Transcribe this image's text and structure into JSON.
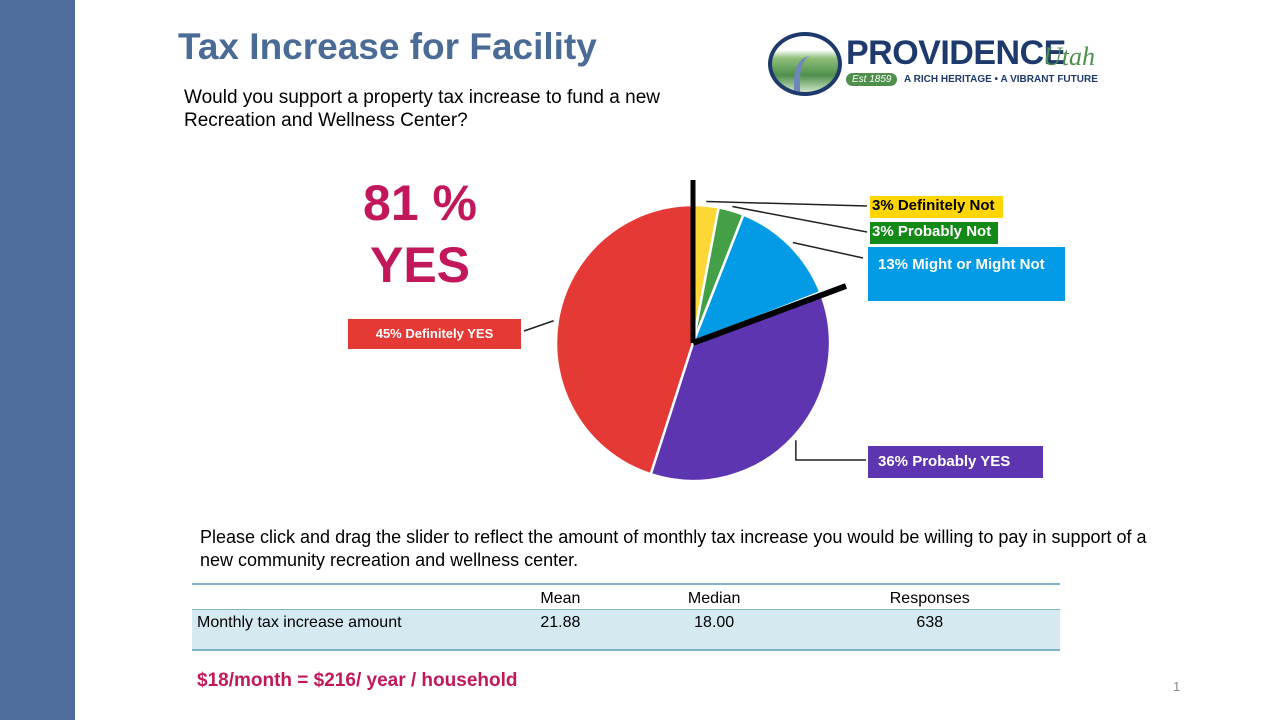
{
  "slide": {
    "title": "Tax Increase for Facility",
    "question": "Would you support a property tax increase to fund a new Recreation and Wellness Center?",
    "headline_pct": "81 %",
    "headline_word": "YES",
    "instruction": "Please click and drag the slider to reflect the amount of monthly tax increase you would be willing to pay in support of a new community recreation and wellness center.",
    "footnote": "$18/month = $216/ year / household",
    "page_number": "1"
  },
  "logo": {
    "name": "PROVIDENCE",
    "script": "Utah",
    "est": "Est 1859",
    "tagline": "A RICH HERITAGE • A VIBRANT FUTURE"
  },
  "chart_data": {
    "type": "pie",
    "title": "",
    "slices": [
      {
        "label": "3% Definitely Not",
        "category": "Definitely Not",
        "value": 3,
        "color": "#fdd835"
      },
      {
        "label": "3% Probably Not",
        "category": "Probably Not",
        "value": 3,
        "color": "#43a047"
      },
      {
        "label": "13% Might or Might Not",
        "category": "Might or Might Not",
        "value": 13,
        "color": "#039be5"
      },
      {
        "label": "36% Probably YES",
        "category": "Probably YES",
        "value": 36,
        "color": "#5e35b1"
      },
      {
        "label": "45% Definitely YES",
        "category": "Definitely YES",
        "value": 45,
        "color": "#e53935"
      }
    ],
    "label_colors": {
      "Definitely Not": {
        "bg": "#ffd600",
        "fg": "#000000"
      },
      "Probably Not": {
        "bg": "#138a17",
        "fg": "#ffffff"
      },
      "Might or Might Not": {
        "bg": "#039be5",
        "fg": "#ffffff"
      },
      "Probably YES": {
        "bg": "#5e35b1",
        "fg": "#ffffff"
      },
      "Definitely YES": {
        "bg": "#e53935",
        "fg": "#ffffff"
      }
    }
  },
  "table": {
    "headers": [
      "",
      "Mean",
      "Median",
      "Responses"
    ],
    "rows": [
      [
        "Monthly tax increase amount",
        "21.88",
        "18.00",
        "638"
      ]
    ]
  }
}
